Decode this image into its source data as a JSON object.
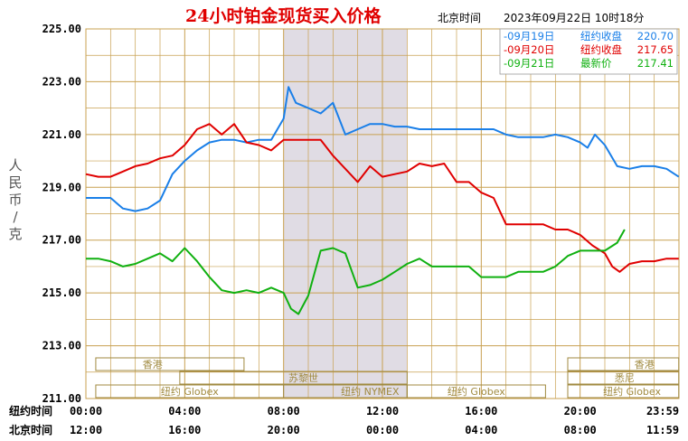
{
  "title": "24小时铂金现货买入价格",
  "timezone_label": "北京时间",
  "timestamp": "2023年09月22日 10时18分",
  "y_unit_label": [
    "人",
    "民",
    "币",
    "/",
    "克"
  ],
  "legend": [
    {
      "date": "-09月19日",
      "text": "纽约收盘",
      "value": "220.70",
      "color": "#1a7fe8"
    },
    {
      "date": "-09月20日",
      "text": "纽约收盘",
      "value": "217.65",
      "color": "#e00000"
    },
    {
      "date": "-09月21日",
      "text": "最新价",
      "value": "217.41",
      "color": "#10b010"
    }
  ],
  "sessions": [
    {
      "label": "香港",
      "color": "#a08a40"
    },
    {
      "label": "苏黎世",
      "color": "#a08a40"
    },
    {
      "label": "纽约 Globex",
      "color": "#a08a40"
    },
    {
      "label": "纽约 NYMEX",
      "color": "#a08a40"
    },
    {
      "label": "纽约 Globex",
      "color": "#a08a40"
    },
    {
      "label": "香港",
      "color": "#a08a40"
    },
    {
      "label": "悉尼",
      "color": "#a08a40"
    },
    {
      "label": "纽约 Globex",
      "color": "#a08a40"
    }
  ],
  "x_row_labels": [
    "纽约时间",
    "北京时间"
  ],
  "x_ticks_ny": [
    "00:00",
    "04:00",
    "08:00",
    "12:00",
    "16:00",
    "20:00",
    "23:59"
  ],
  "x_ticks_bj": [
    "12:00",
    "16:00",
    "20:00",
    "00:00",
    "04:00",
    "08:00",
    "11:59"
  ],
  "colors": {
    "grid": "#c8a050",
    "highlight": "#e0dce4",
    "axis_text": "#000000",
    "title": "#e00000"
  },
  "chart_data": {
    "type": "line",
    "title": "24小时铂金现货买入价格",
    "ylabel": "人民币/克",
    "xlabel": "纽约时间 / 北京时间",
    "ylim": [
      211,
      225
    ],
    "y_ticks": [
      "225.00",
      "223.00",
      "221.00",
      "219.00",
      "217.00",
      "215.00",
      "213.00",
      "211.00"
    ],
    "xlim": [
      0,
      24
    ],
    "highlight_range": [
      8,
      13
    ],
    "series": [
      {
        "name": "09月19日",
        "color": "#1a7fe8",
        "x": [
          0,
          0.5,
          1,
          1.5,
          2,
          2.5,
          3,
          3.5,
          4,
          4.5,
          5,
          5.5,
          6,
          6.5,
          7,
          7.5,
          8,
          8.2,
          8.5,
          9,
          9.5,
          10,
          10.5,
          11,
          11.5,
          12,
          12.5,
          13,
          13.5,
          14,
          14.5,
          15,
          15.5,
          16,
          16.5,
          17,
          17.5,
          18,
          18.5,
          19,
          19.5,
          20,
          20.3,
          20.6,
          21,
          21.5,
          22,
          22.5,
          23,
          23.5,
          23.99
        ],
        "y": [
          218.6,
          218.6,
          218.6,
          218.2,
          218.1,
          218.2,
          218.5,
          219.5,
          220.0,
          220.4,
          220.7,
          220.8,
          220.8,
          220.7,
          220.8,
          220.8,
          221.6,
          222.8,
          222.2,
          222.0,
          221.8,
          222.2,
          221.0,
          221.2,
          221.4,
          221.4,
          221.3,
          221.3,
          221.2,
          221.2,
          221.2,
          221.2,
          221.2,
          221.2,
          221.2,
          221.0,
          220.9,
          220.9,
          220.9,
          221.0,
          220.9,
          220.7,
          220.5,
          221.0,
          220.6,
          219.8,
          219.7,
          219.8,
          219.8,
          219.7,
          219.4
        ]
      },
      {
        "name": "09月20日",
        "color": "#e00000",
        "x": [
          0,
          0.5,
          1,
          1.5,
          2,
          2.5,
          3,
          3.5,
          4,
          4.5,
          5,
          5.5,
          6,
          6.5,
          7,
          7.5,
          8,
          8.5,
          9,
          9.5,
          10,
          10.5,
          11,
          11.5,
          12,
          12.5,
          13,
          13.5,
          14,
          14.5,
          15,
          15.5,
          16,
          16.5,
          17,
          17.5,
          18,
          18.5,
          19,
          19.5,
          20,
          20.5,
          21,
          21.3,
          21.6,
          22,
          22.5,
          23,
          23.5,
          23.99
        ],
        "y": [
          219.5,
          219.4,
          219.4,
          219.6,
          219.8,
          219.9,
          220.1,
          220.2,
          220.6,
          221.2,
          221.4,
          221.0,
          221.4,
          220.7,
          220.6,
          220.4,
          220.8,
          220.8,
          220.8,
          220.8,
          220.2,
          219.7,
          219.2,
          219.8,
          219.4,
          219.5,
          219.6,
          219.9,
          219.8,
          219.9,
          219.2,
          219.2,
          218.8,
          218.6,
          217.6,
          217.6,
          217.6,
          217.6,
          217.4,
          217.4,
          217.2,
          216.8,
          216.5,
          216.0,
          215.8,
          216.1,
          216.2,
          216.2,
          216.3,
          216.3
        ]
      },
      {
        "name": "09月21日",
        "color": "#10b010",
        "x": [
          0,
          0.5,
          1,
          1.5,
          2,
          2.5,
          3,
          3.5,
          4,
          4.5,
          5,
          5.5,
          6,
          6.5,
          7,
          7.5,
          8,
          8.3,
          8.6,
          9,
          9.5,
          10,
          10.5,
          11,
          11.5,
          12,
          12.5,
          13,
          13.5,
          14,
          14.5,
          15,
          15.5,
          16,
          16.5,
          17,
          17.5,
          18,
          18.5,
          19,
          19.5,
          20,
          20.5,
          21,
          21.5,
          21.8
        ],
        "y": [
          216.3,
          216.3,
          216.2,
          216.0,
          216.1,
          216.3,
          216.5,
          216.2,
          216.7,
          216.2,
          215.6,
          215.1,
          215.0,
          215.1,
          215.0,
          215.2,
          215.0,
          214.4,
          214.2,
          214.9,
          216.6,
          216.7,
          216.5,
          215.2,
          215.3,
          215.5,
          215.8,
          216.1,
          216.3,
          216.0,
          216.0,
          216.0,
          216.0,
          215.6,
          215.6,
          215.6,
          215.8,
          215.8,
          215.8,
          216.0,
          216.4,
          216.6,
          216.6,
          216.6,
          216.9,
          217.4
        ]
      }
    ]
  }
}
